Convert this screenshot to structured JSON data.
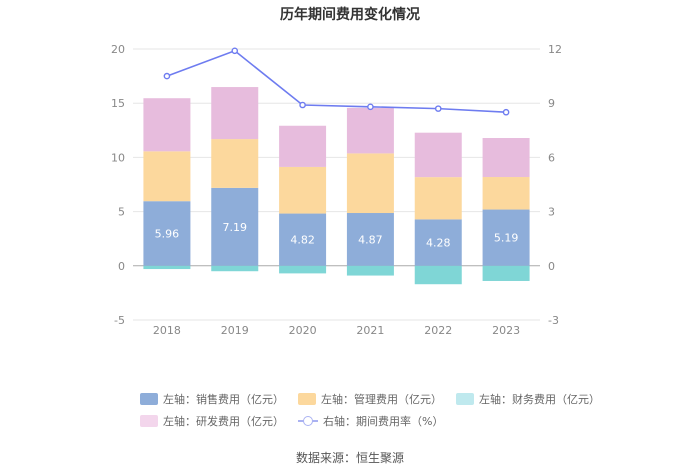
{
  "chart_data": {
    "type": "bar",
    "stacked": true,
    "title": "历年期间费用变化情况",
    "categories": [
      "2018",
      "2019",
      "2020",
      "2021",
      "2022",
      "2023"
    ],
    "left_axis": {
      "min": -5,
      "max": 20,
      "ticks": [
        "-5",
        "0",
        "5",
        "10",
        "15",
        "20"
      ]
    },
    "right_axis": {
      "min": -3,
      "max": 12,
      "ticks": [
        "-3",
        "0",
        "3",
        "6",
        "9",
        "12"
      ]
    },
    "series": [
      {
        "name": "左轴：销售费用（亿元）",
        "axis": "left",
        "kind": "bar",
        "color": "#8eadd9",
        "values": [
          5.96,
          7.19,
          4.82,
          4.87,
          4.28,
          5.19
        ],
        "labels": [
          "5.96",
          "7.19",
          "4.82",
          "4.87",
          "4.28",
          "5.19"
        ]
      },
      {
        "name": "左轴：管理费用（亿元）",
        "axis": "left",
        "kind": "bar",
        "color": "#fcd89d",
        "values": [
          4.6,
          4.5,
          4.3,
          5.5,
          3.9,
          3.0
        ]
      },
      {
        "name": "左轴：财务费用（亿元）",
        "axis": "left",
        "kind": "bar",
        "color": "#7fd6d6",
        "values": [
          -0.3,
          -0.5,
          -0.7,
          -0.9,
          -1.7,
          -1.4
        ]
      },
      {
        "name": "左轴：研发费用（亿元）",
        "axis": "left",
        "kind": "bar",
        "color": "#e7bcdd",
        "values": [
          4.9,
          4.8,
          3.8,
          4.2,
          4.1,
          3.6
        ]
      },
      {
        "name": "右轴：期间费用率（%）",
        "axis": "right",
        "kind": "line",
        "color": "#6e7cf0",
        "values": [
          10.5,
          11.9,
          8.9,
          8.8,
          8.7,
          8.5
        ]
      }
    ],
    "legend_position": "bottom"
  },
  "source": "数据来源：恒生聚源"
}
